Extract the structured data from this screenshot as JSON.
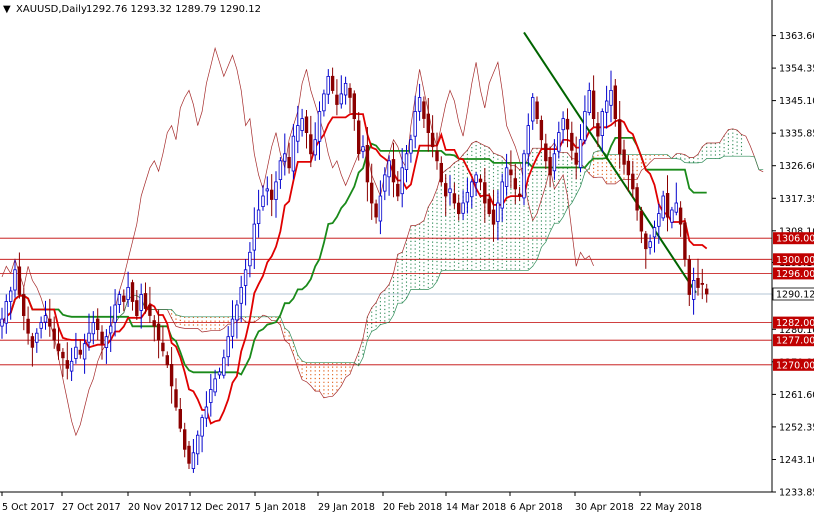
{
  "header": {
    "symbol": "XAUUSD,Daily",
    "ohlc": "1292.76 1293.32 1289.79 1290.12"
  },
  "colors": {
    "background": "#ffffff",
    "bull_candle": "#0000cd",
    "bear_candle": "#8b0000",
    "tenkan": "#e00000",
    "kijun": "#1a8a1a",
    "chikou": "#a52a2a",
    "span_a": "#a52a2a",
    "cloud_bull_dots": "#2e8b57",
    "cloud_bear_dots": "#e05a10",
    "hline": "#c00000",
    "trendline": "#006400",
    "axis_text": "#000000",
    "tag_text": "#ffffff"
  },
  "chart_data": {
    "type": "candlestick",
    "title": "XAUUSD,Daily",
    "ylim": [
      1233.85,
      1372.0
    ],
    "y_ticks": [
      1363.6,
      1354.35,
      1345.1,
      1335.85,
      1326.6,
      1317.35,
      1308.1,
      1299.1,
      1289.85,
      1280.1,
      1270.85,
      1261.6,
      1252.35,
      1243.1,
      1233.85
    ],
    "y_tick_labels": [
      "1363.60",
      "1354.35",
      "1345.10",
      "1335.85",
      "1326.60",
      "1317.35",
      "1308.10",
      "1299.10",
      "1289.85",
      "1280.10",
      "1270.85",
      "1261.60",
      "1252.35",
      "1243.10",
      "1233.85"
    ],
    "x_labels": [
      "5 Oct 2017",
      "27 Oct 2017",
      "20 Nov 2017",
      "12 Dec 2017",
      "5 Jan 2018",
      "29 Jan 2018",
      "20 Feb 2018",
      "14 Mar 2018",
      "6 Apr 2018",
      "30 Apr 2018",
      "22 May 2018"
    ],
    "price_levels": [
      {
        "value": 1306.0,
        "label": "1306.00"
      },
      {
        "value": 1300.0,
        "label": "1300.00"
      },
      {
        "value": 1296.0,
        "label": "1296.00"
      },
      {
        "value": 1282.0,
        "label": "1282.00"
      },
      {
        "value": 1277.0,
        "label": "1277.00"
      },
      {
        "value": 1270.0,
        "label": "1270.00"
      }
    ],
    "current_price": {
      "value": 1290.12,
      "label": "1290.12"
    },
    "trendline": [
      {
        "x": "6 Apr 2018",
        "y": 1364.5
      },
      {
        "x": "5 Jun 2018",
        "y": 1290.5
      }
    ],
    "closes": [
      1283,
      1288,
      1291,
      1297,
      1290,
      1284,
      1279,
      1275,
      1279,
      1282,
      1284,
      1281,
      1277,
      1274,
      1272,
      1269,
      1271,
      1275,
      1273,
      1276,
      1279,
      1282,
      1280,
      1276,
      1278,
      1281,
      1287,
      1290,
      1288,
      1292,
      1288,
      1284,
      1290,
      1286,
      1284,
      1281,
      1277,
      1274,
      1270,
      1264,
      1258,
      1252,
      1246,
      1242,
      1245,
      1250,
      1255,
      1258,
      1263,
      1266,
      1268,
      1272,
      1278,
      1283,
      1287,
      1292,
      1297,
      1302,
      1310,
      1314,
      1318,
      1320,
      1317,
      1322,
      1328,
      1330,
      1326,
      1335,
      1338,
      1340,
      1336,
      1330,
      1334,
      1342,
      1347,
      1352,
      1348,
      1344,
      1347,
      1350,
      1346,
      1340,
      1330,
      1332,
      1322,
      1316,
      1312,
      1318,
      1324,
      1328,
      1322,
      1318,
      1326,
      1330,
      1334,
      1342,
      1346,
      1340,
      1336,
      1332,
      1328,
      1322,
      1318,
      1320,
      1316,
      1313,
      1316,
      1319,
      1322,
      1324,
      1322,
      1316,
      1313,
      1310,
      1316,
      1322,
      1326,
      1324,
      1320,
      1318,
      1330,
      1338,
      1346,
      1340,
      1334,
      1328,
      1324,
      1330,
      1336,
      1340,
      1337,
      1331,
      1327,
      1334,
      1342,
      1348,
      1340,
      1335,
      1342,
      1345,
      1348,
      1340,
      1330,
      1327,
      1324,
      1320,
      1314,
      1308,
      1303,
      1305,
      1309,
      1313,
      1318,
      1312,
      1314,
      1316,
      1310,
      1300,
      1290,
      1294,
      1292,
      1293,
      1290.12
    ]
  }
}
